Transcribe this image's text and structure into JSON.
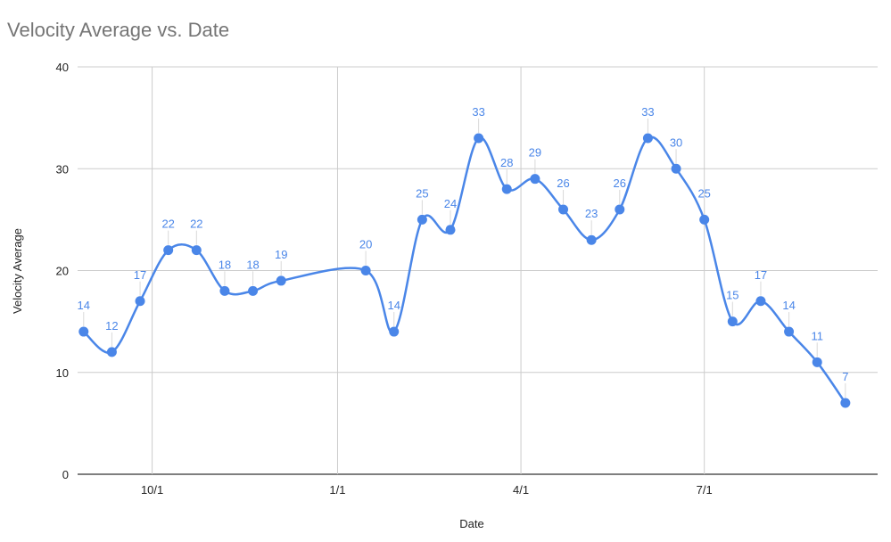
{
  "chart_data": {
    "type": "line",
    "title": "Velocity Average vs. Date",
    "xlabel": "Date",
    "ylabel": "Velocity Average",
    "ylim": [
      0,
      40
    ],
    "yticks": [
      "0",
      "10",
      "20",
      "30",
      "40"
    ],
    "xlim": [
      "2019-08-25",
      "2020-09-25"
    ],
    "xticks": [
      {
        "date": "2019-10-01",
        "label": "10/1"
      },
      {
        "date": "2020-01-01",
        "label": "1/1"
      },
      {
        "date": "2020-04-01",
        "label": "4/1"
      },
      {
        "date": "2020-07-01",
        "label": "7/1"
      }
    ],
    "grid": true,
    "legend": "none",
    "smooth": true,
    "line_color": "#4a86e8",
    "series": [
      {
        "x": [
          "2019-08-28",
          "2019-09-11",
          "2019-09-25",
          "2019-10-09",
          "2019-10-23",
          "2019-11-06",
          "2019-11-20",
          "2019-12-04",
          "2020-01-15",
          "2020-01-29",
          "2020-02-12",
          "2020-02-26",
          "2020-03-11",
          "2020-03-25",
          "2020-04-08",
          "2020-04-22",
          "2020-05-06",
          "2020-05-20",
          "2020-06-03",
          "2020-06-17",
          "2020-07-01",
          "2020-07-15",
          "2020-07-29",
          "2020-08-12",
          "2020-08-26",
          "2020-09-09"
        ],
        "values": [
          14,
          12,
          17,
          22,
          22,
          18,
          18,
          19,
          20,
          14,
          25,
          24,
          33,
          28,
          29,
          26,
          23,
          26,
          33,
          30,
          25,
          15,
          17,
          14,
          11,
          7
        ]
      }
    ]
  }
}
